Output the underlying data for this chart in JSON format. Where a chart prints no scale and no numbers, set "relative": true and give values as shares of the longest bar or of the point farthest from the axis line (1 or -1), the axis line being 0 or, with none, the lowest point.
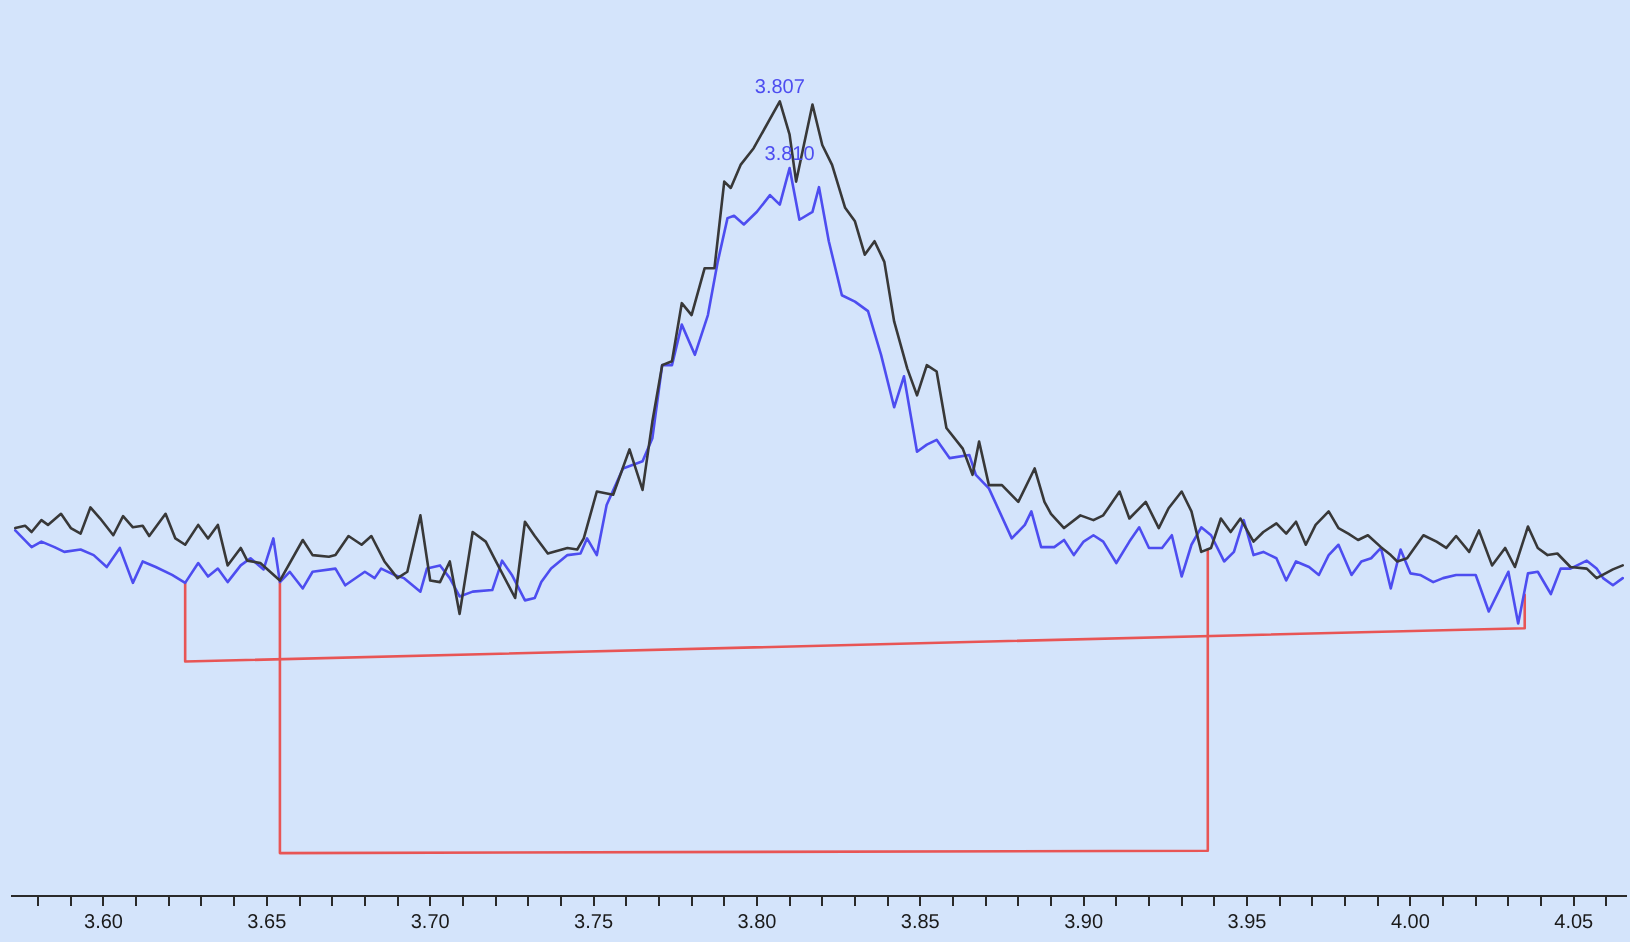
{
  "chart_data": {
    "type": "line",
    "relative": true,
    "marker": "none",
    "line_style": "solid",
    "xlim": [
      3.572,
      4.066
    ],
    "xticks": [
      {
        "value": 3.58,
        "label": null
      },
      {
        "value": 3.59,
        "label": null
      },
      {
        "value": 3.6,
        "label": "3.60"
      },
      {
        "value": 3.61,
        "label": null
      },
      {
        "value": 3.62,
        "label": null
      },
      {
        "value": 3.63,
        "label": null
      },
      {
        "value": 3.64,
        "label": null
      },
      {
        "value": 3.65,
        "label": "3.65"
      },
      {
        "value": 3.66,
        "label": null
      },
      {
        "value": 3.67,
        "label": null
      },
      {
        "value": 3.68,
        "label": null
      },
      {
        "value": 3.69,
        "label": null
      },
      {
        "value": 3.7,
        "label": "3.70"
      },
      {
        "value": 3.71,
        "label": null
      },
      {
        "value": 3.72,
        "label": null
      },
      {
        "value": 3.73,
        "label": null
      },
      {
        "value": 3.74,
        "label": null
      },
      {
        "value": 3.75,
        "label": "3.75"
      },
      {
        "value": 3.76,
        "label": null
      },
      {
        "value": 3.77,
        "label": null
      },
      {
        "value": 3.78,
        "label": null
      },
      {
        "value": 3.79,
        "label": null
      },
      {
        "value": 3.8,
        "label": "3.80"
      },
      {
        "value": 3.81,
        "label": null
      },
      {
        "value": 3.82,
        "label": null
      },
      {
        "value": 3.83,
        "label": null
      },
      {
        "value": 3.84,
        "label": null
      },
      {
        "value": 3.85,
        "label": "3.85"
      },
      {
        "value": 3.86,
        "label": null
      },
      {
        "value": 3.87,
        "label": null
      },
      {
        "value": 3.88,
        "label": null
      },
      {
        "value": 3.89,
        "label": null
      },
      {
        "value": 3.9,
        "label": "3.90"
      },
      {
        "value": 3.91,
        "label": null
      },
      {
        "value": 3.92,
        "label": null
      },
      {
        "value": 3.93,
        "label": null
      },
      {
        "value": 3.94,
        "label": null
      },
      {
        "value": 3.95,
        "label": "3.95"
      },
      {
        "value": 3.96,
        "label": null
      },
      {
        "value": 3.97,
        "label": null
      },
      {
        "value": 3.98,
        "label": null
      },
      {
        "value": 3.99,
        "label": null
      },
      {
        "value": 4.0,
        "label": "4.00"
      },
      {
        "value": 4.01,
        "label": null
      },
      {
        "value": 4.02,
        "label": null
      },
      {
        "value": 4.03,
        "label": null
      },
      {
        "value": 4.04,
        "label": null
      },
      {
        "value": 4.05,
        "label": "4.05"
      },
      {
        "value": 4.06,
        "label": null
      }
    ],
    "annotations": [
      {
        "text": "3.807",
        "x": 3.807,
        "y": 1
      },
      {
        "text": "3.810",
        "x": 3.81,
        "y": 0.916
      }
    ],
    "series": [
      {
        "color": "#383838",
        "x": [
          3.573,
          3.576,
          3.578,
          3.581,
          3.583,
          3.587,
          3.59,
          3.593,
          3.596,
          3.599,
          3.603,
          3.606,
          3.609,
          3.612,
          3.614,
          3.619,
          3.622,
          3.625,
          3.629,
          3.632,
          3.635,
          3.638,
          3.642,
          3.644,
          3.648,
          3.654,
          3.661,
          3.664,
          3.669,
          3.671,
          3.675,
          3.679,
          3.682,
          3.686,
          3.69,
          3.693,
          3.697,
          3.7,
          3.703,
          3.706,
          3.709,
          3.713,
          3.717,
          3.72,
          3.726,
          3.729,
          3.732,
          3.736,
          3.742,
          3.745,
          3.747,
          3.751,
          3.756,
          3.761,
          3.765,
          3.768,
          3.771,
          3.774,
          3.777,
          3.78,
          3.784,
          3.787,
          3.79,
          3.792,
          3.795,
          3.799,
          3.807,
          3.81,
          3.812,
          3.817,
          3.82,
          3.823,
          3.827,
          3.83,
          3.833,
          3.836,
          3.839,
          3.842,
          3.846,
          3.849,
          3.852,
          3.855,
          3.858,
          3.863,
          3.866,
          3.868,
          3.871,
          3.875,
          3.88,
          3.885,
          3.888,
          3.89,
          3.894,
          3.899,
          3.903,
          3.906,
          3.911,
          3.914,
          3.919,
          3.923,
          3.926,
          3.93,
          3.933,
          3.936,
          3.939,
          3.942,
          3.945,
          3.948,
          3.952,
          3.955,
          3.959,
          3.962,
          3.965,
          3.968,
          3.971,
          3.975,
          3.978,
          3.981,
          3.984,
          3.987,
          3.991,
          3.994,
          3.996,
          3.999,
          4.004,
          4.008,
          4.011,
          4.014,
          4.018,
          4.021,
          4.025,
          4.029,
          4.032,
          4.036,
          4.039,
          4.042,
          4.045,
          4.049,
          4.054,
          4.057,
          4.062,
          4.065
        ],
        "values": [
          0.463,
          0.466,
          0.458,
          0.473,
          0.467,
          0.481,
          0.463,
          0.456,
          0.489,
          0.475,
          0.454,
          0.478,
          0.464,
          0.466,
          0.453,
          0.481,
          0.45,
          0.442,
          0.467,
          0.45,
          0.467,
          0.416,
          0.438,
          0.422,
          0.419,
          0.397,
          0.448,
          0.429,
          0.427,
          0.429,
          0.453,
          0.442,
          0.453,
          0.421,
          0.4,
          0.408,
          0.479,
          0.397,
          0.395,
          0.421,
          0.355,
          0.458,
          0.446,
          0.422,
          0.375,
          0.471,
          0.453,
          0.431,
          0.438,
          0.436,
          0.45,
          0.509,
          0.505,
          0.562,
          0.511,
          0.597,
          0.668,
          0.673,
          0.746,
          0.731,
          0.79,
          0.79,
          0.899,
          0.891,
          0.92,
          0.941,
          1,
          0.958,
          0.899,
          0.996,
          0.945,
          0.92,
          0.866,
          0.849,
          0.807,
          0.824,
          0.798,
          0.723,
          0.664,
          0.63,
          0.668,
          0.66,
          0.589,
          0.563,
          0.53,
          0.572,
          0.517,
          0.517,
          0.496,
          0.538,
          0.496,
          0.481,
          0.463,
          0.479,
          0.473,
          0.479,
          0.509,
          0.475,
          0.496,
          0.463,
          0.488,
          0.509,
          0.484,
          0.433,
          0.438,
          0.475,
          0.458,
          0.475,
          0.446,
          0.458,
          0.469,
          0.456,
          0.471,
          0.442,
          0.467,
          0.484,
          0.463,
          0.456,
          0.448,
          0.454,
          0.439,
          0.429,
          0.421,
          0.425,
          0.454,
          0.446,
          0.438,
          0.453,
          0.433,
          0.46,
          0.416,
          0.438,
          0.414,
          0.465,
          0.438,
          0.429,
          0.431,
          0.414,
          0.412,
          0.4,
          0.411,
          0.416
        ]
      },
      {
        "color": "#4d4df0",
        "x": [
          3.573,
          3.578,
          3.581,
          3.585,
          3.588,
          3.593,
          3.597,
          3.601,
          3.605,
          3.609,
          3.612,
          3.616,
          3.621,
          3.625,
          3.629,
          3.632,
          3.635,
          3.638,
          3.642,
          3.645,
          3.649,
          3.652,
          3.654,
          3.657,
          3.661,
          3.664,
          3.671,
          3.674,
          3.68,
          3.683,
          3.685,
          3.689,
          3.692,
          3.697,
          3.699,
          3.703,
          3.706,
          3.709,
          3.713,
          3.719,
          3.722,
          3.725,
          3.729,
          3.732,
          3.734,
          3.737,
          3.742,
          3.746,
          3.748,
          3.751,
          3.754,
          3.759,
          3.765,
          3.768,
          3.771,
          3.774,
          3.777,
          3.781,
          3.785,
          3.788,
          3.791,
          3.793,
          3.796,
          3.8,
          3.804,
          3.807,
          3.81,
          3.813,
          3.817,
          3.819,
          3.822,
          3.826,
          3.83,
          3.834,
          3.838,
          3.842,
          3.845,
          3.849,
          3.852,
          3.855,
          3.859,
          3.865,
          3.867,
          3.871,
          3.878,
          3.882,
          3.884,
          3.887,
          3.891,
          3.894,
          3.897,
          3.9,
          3.903,
          3.906,
          3.91,
          3.914,
          3.917,
          3.92,
          3.924,
          3.927,
          3.93,
          3.933,
          3.936,
          3.939,
          3.943,
          3.946,
          3.949,
          3.952,
          3.955,
          3.959,
          3.962,
          3.965,
          3.969,
          3.972,
          3.975,
          3.978,
          3.982,
          3.985,
          3.988,
          3.991,
          3.994,
          3.997,
          4.0,
          4.003,
          4.007,
          4.01,
          4.014,
          4.02,
          4.024,
          4.027,
          4.03,
          4.033,
          4.036,
          4.039,
          4.043,
          4.046,
          4.049,
          4.054,
          4.057,
          4.059,
          4.062,
          4.065
        ],
        "values": [
          0.46,
          0.439,
          0.446,
          0.439,
          0.433,
          0.436,
          0.429,
          0.414,
          0.438,
          0.394,
          0.421,
          0.414,
          0.404,
          0.394,
          0.419,
          0.402,
          0.412,
          0.395,
          0.416,
          0.425,
          0.411,
          0.45,
          0.395,
          0.408,
          0.387,
          0.408,
          0.412,
          0.391,
          0.408,
          0.4,
          0.412,
          0.404,
          0.4,
          0.383,
          0.412,
          0.416,
          0.4,
          0.377,
          0.383,
          0.385,
          0.422,
          0.404,
          0.372,
          0.375,
          0.395,
          0.412,
          0.429,
          0.431,
          0.45,
          0.429,
          0.492,
          0.538,
          0.547,
          0.576,
          0.668,
          0.668,
          0.719,
          0.681,
          0.731,
          0.798,
          0.853,
          0.856,
          0.845,
          0.861,
          0.882,
          0.87,
          0.916,
          0.851,
          0.861,
          0.892,
          0.824,
          0.756,
          0.748,
          0.736,
          0.681,
          0.615,
          0.654,
          0.559,
          0.568,
          0.574,
          0.551,
          0.555,
          0.53,
          0.513,
          0.45,
          0.467,
          0.484,
          0.439,
          0.439,
          0.448,
          0.429,
          0.446,
          0.454,
          0.446,
          0.419,
          0.446,
          0.464,
          0.438,
          0.438,
          0.454,
          0.402,
          0.442,
          0.464,
          0.454,
          0.421,
          0.433,
          0.473,
          0.429,
          0.433,
          0.425,
          0.397,
          0.421,
          0.414,
          0.404,
          0.429,
          0.442,
          0.404,
          0.421,
          0.425,
          0.438,
          0.387,
          0.436,
          0.406,
          0.404,
          0.395,
          0.4,
          0.404,
          0.404,
          0.358,
          0.383,
          0.408,
          0.343,
          0.406,
          0.408,
          0.38,
          0.412,
          0.412,
          0.422,
          0.412,
          0.4,
          0.391,
          0.4
        ]
      },
      {
        "color": "#e85555",
        "x": [
          3.625,
          3.625,
          4.035,
          4.035
        ],
        "values": [
          0.394,
          0.295,
          0.337,
          0.379
        ]
      },
      {
        "color": "#e85555",
        "x": [
          3.654,
          3.654,
          3.938,
          3.938
        ],
        "values": [
          0.395,
          0.054,
          0.057,
          0.436
        ]
      }
    ]
  }
}
